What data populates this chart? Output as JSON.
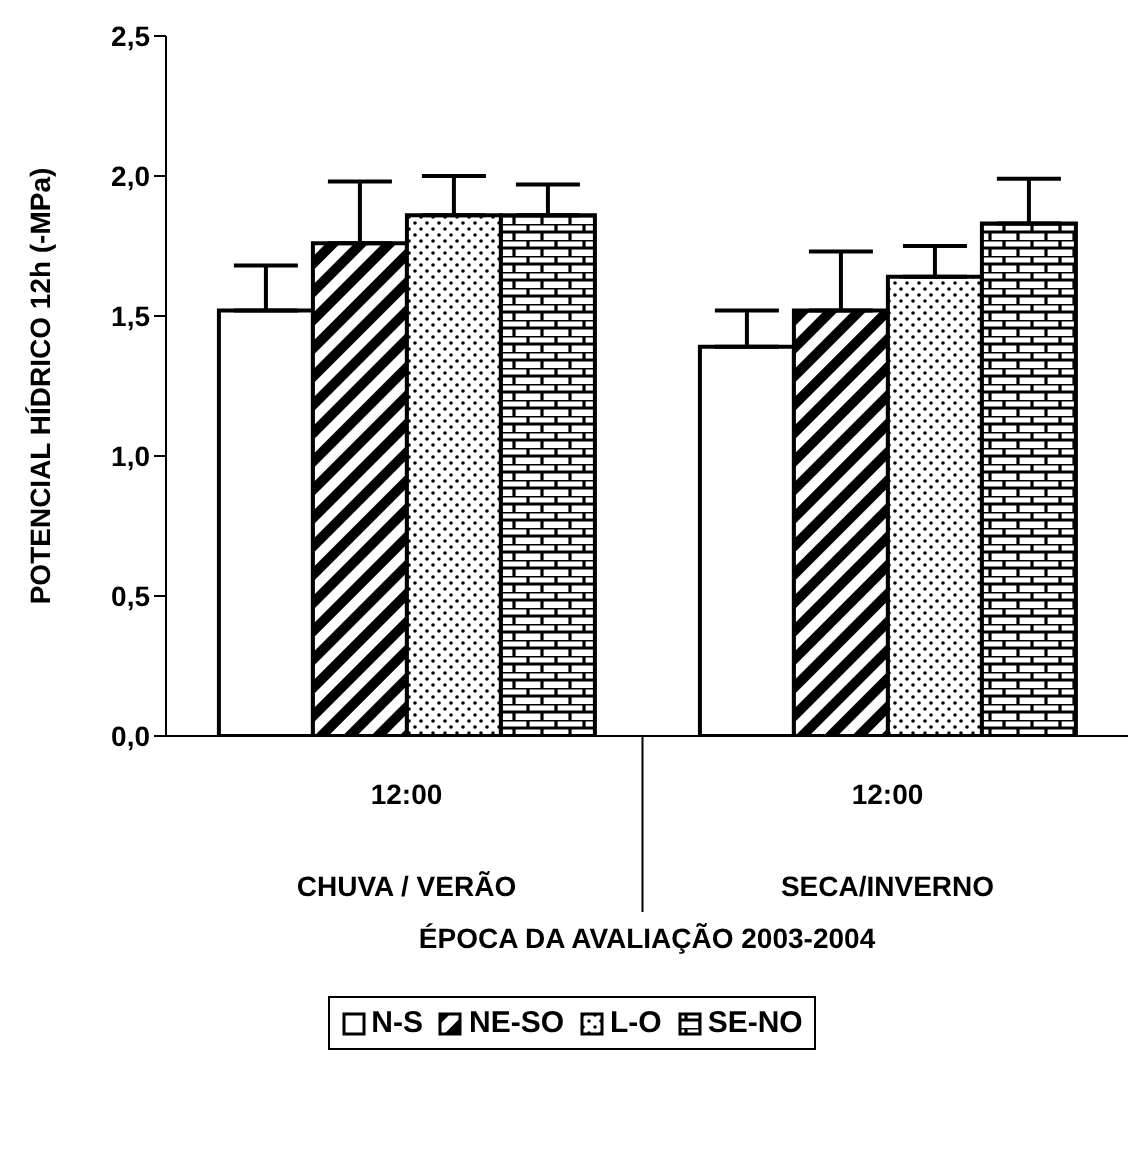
{
  "chart_data": {
    "type": "bar",
    "categories": [
      "12:00",
      "12:00"
    ],
    "xlabel": "ÉPOCA DA AVALIAÇÃO 2003-2004",
    "ylabel": "POTENCIAL HÍDRICO  12h  (-MPa)",
    "annotations": [
      "CHUVA / VERÃO",
      "SECA/INVERNO"
    ],
    "series": [
      {
        "name": "N-S",
        "color": "#ffffff",
        "values": [
          1.52,
          1.39
        ],
        "errors": [
          [
            1.52,
            1.68
          ],
          [
            1.39,
            1.52
          ]
        ]
      },
      {
        "name": "NE-SO",
        "color": "#000000",
        "values": [
          1.76,
          1.52
        ],
        "errors": [
          [
            1.76,
            1.98
          ],
          [
            1.52,
            1.73
          ]
        ]
      },
      {
        "name": "L-O",
        "color": "#000000",
        "values": [
          1.86,
          1.64
        ],
        "errors": [
          [
            1.86,
            2.0
          ],
          [
            1.64,
            1.75
          ]
        ]
      },
      {
        "name": "SE-NO",
        "color": "#000000",
        "values": [
          1.86,
          1.83
        ],
        "errors": [
          [
            1.86,
            1.97
          ],
          [
            1.83,
            1.99
          ]
        ]
      }
    ],
    "ylim": [
      0,
      2.5
    ],
    "yticks": [
      {
        "value": 0,
        "label": "0,0"
      },
      {
        "value": 0.5,
        "label": "0,5"
      },
      {
        "value": 1,
        "label": "1,0"
      },
      {
        "value": 1.5,
        "label": "1,5"
      },
      {
        "value": 2,
        "label": "2,0"
      },
      {
        "value": 2.5,
        "label": "2,5"
      }
    ],
    "grid": false,
    "legend": "bottom"
  }
}
